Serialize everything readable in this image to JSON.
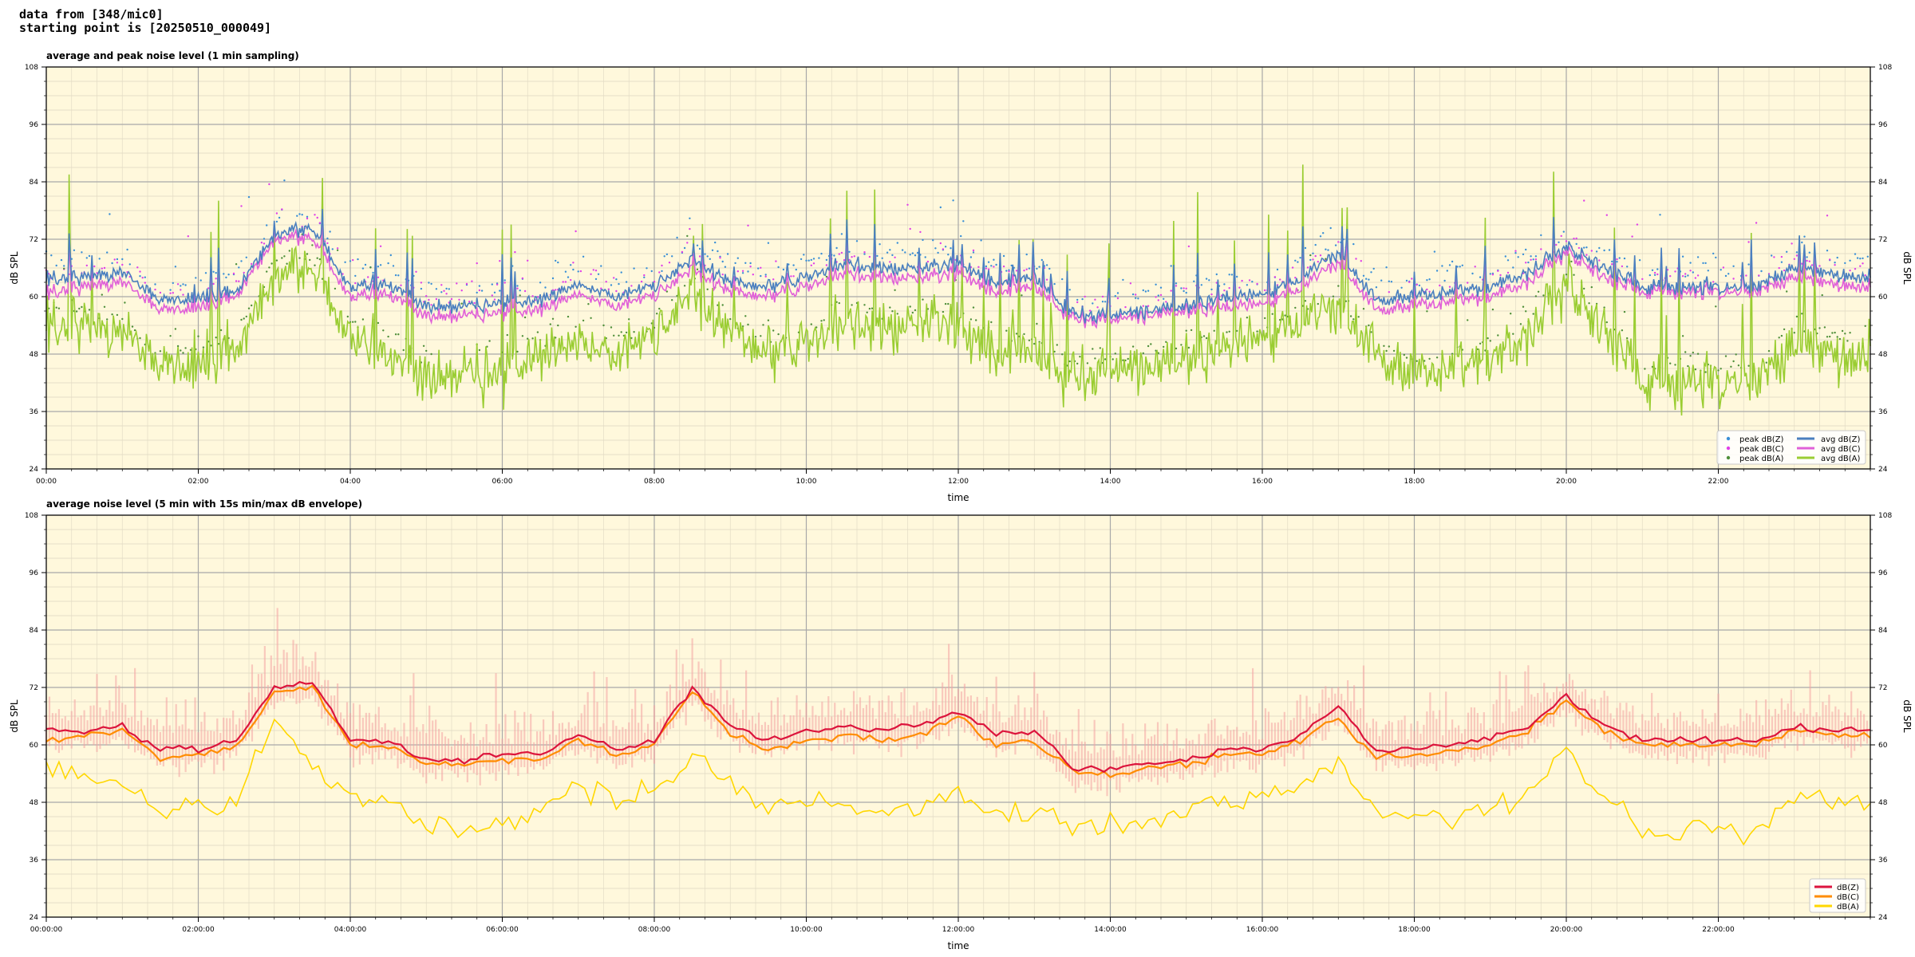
{
  "header": {
    "line1": "data from [348/mic0]",
    "line2": "starting point is [20250510_000049]"
  },
  "colors": {
    "plot_bg": "#fff8dc",
    "peak_z": "#3a8fd6",
    "peak_c": "#e040e8",
    "peak_a": "#4f8f3a",
    "avg_z": "#4a7fbf",
    "avg_c": "#e060d8",
    "avg_a": "#9acd32",
    "dbz_5min": "#dc143c",
    "dbc_5min": "#ff8c00",
    "dba_5min": "#ffd700",
    "envelope": "#f4a3a3"
  },
  "chart_data": [
    {
      "type": "scatter",
      "title": "average and peak noise level (1 min sampling)",
      "xlabel": "time",
      "ylabel": "dB SPL",
      "xlim": [
        0,
        24
      ],
      "ylim": [
        24,
        108
      ],
      "yticks": [
        24,
        36,
        48,
        60,
        72,
        84,
        96,
        108
      ],
      "xtick_labels": [
        "00:00",
        "02:00",
        "04:00",
        "06:00",
        "08:00",
        "10:00",
        "12:00",
        "14:00",
        "16:00",
        "18:00",
        "20:00",
        "22:00"
      ],
      "grid": true,
      "legend_placement": "lower-right",
      "legend": [
        "peak dB(Z)",
        "peak dB(C)",
        "peak dB(A)",
        "avg dB(Z)",
        "avg dB(C)",
        "avg dB(A)"
      ],
      "x_hours": [
        0,
        0.5,
        1,
        1.5,
        2,
        2.5,
        3,
        3.5,
        4,
        4.5,
        5,
        5.5,
        6,
        6.5,
        7,
        7.5,
        8,
        8.5,
        9,
        9.5,
        10,
        10.5,
        11,
        11.5,
        12,
        12.5,
        13,
        13.5,
        14,
        14.5,
        15,
        15.5,
        16,
        16.5,
        17,
        17.5,
        18,
        18.5,
        19,
        19.5,
        20,
        20.5,
        21,
        21.5,
        22,
        22.5,
        23,
        23.5,
        24
      ],
      "series": [
        {
          "name": "avg dB(Z)",
          "values": [
            64,
            64,
            65,
            59,
            60,
            61,
            73,
            74,
            62,
            63,
            58,
            58,
            59,
            59,
            63,
            60,
            62,
            68,
            63,
            62,
            64,
            67,
            66,
            66,
            67,
            63,
            64,
            56,
            56,
            57,
            58,
            60,
            60,
            64,
            69,
            59,
            60,
            61,
            62,
            65,
            70,
            66,
            62,
            62,
            62,
            62,
            66,
            65,
            64
          ]
        },
        {
          "name": "avg dB(C)",
          "values": [
            61,
            62,
            63,
            57,
            58,
            60,
            72,
            72,
            60,
            61,
            56,
            56,
            57,
            57,
            61,
            58,
            60,
            66,
            61,
            60,
            62,
            65,
            64,
            64,
            65,
            61,
            62,
            55,
            55,
            56,
            57,
            58,
            58,
            62,
            67,
            57,
            58,
            59,
            60,
            63,
            69,
            64,
            61,
            61,
            61,
            61,
            64,
            63,
            62
          ]
        },
        {
          "name": "avg dB(A)",
          "values": [
            55,
            54,
            52,
            45,
            47,
            49,
            64,
            65,
            52,
            49,
            43,
            44,
            45,
            47,
            52,
            48,
            51,
            62,
            52,
            48,
            50,
            55,
            53,
            55,
            54,
            49,
            48,
            42,
            44,
            45,
            47,
            50,
            50,
            55,
            57,
            47,
            44,
            45,
            47,
            52,
            62,
            53,
            42,
            42,
            42,
            42,
            50,
            49,
            48
          ]
        }
      ]
    },
    {
      "type": "line",
      "title": "average noise level (5 min with 15s min/max dB envelope)",
      "xlabel": "time",
      "ylabel": "dB SPL",
      "xlim": [
        0,
        24
      ],
      "ylim": [
        24,
        108
      ],
      "yticks": [
        24,
        36,
        48,
        60,
        72,
        84,
        96,
        108
      ],
      "xtick_labels": [
        "00:00:00",
        "02:00:00",
        "04:00:00",
        "06:00:00",
        "08:00:00",
        "10:00:00",
        "12:00:00",
        "14:00:00",
        "16:00:00",
        "18:00:00",
        "20:00:00",
        "22:00:00"
      ],
      "grid": true,
      "legend_placement": "lower-right",
      "legend": [
        "dB(Z)",
        "dB(C)",
        "dB(A)"
      ],
      "x_hours": [
        0,
        0.5,
        1,
        1.5,
        2,
        2.5,
        3,
        3.5,
        4,
        4.5,
        5,
        5.5,
        6,
        6.5,
        7,
        7.5,
        8,
        8.5,
        9,
        9.5,
        10,
        10.5,
        11,
        11.5,
        12,
        12.5,
        13,
        13.5,
        14,
        14.5,
        15,
        15.5,
        16,
        16.5,
        17,
        17.5,
        18,
        18.5,
        19,
        19.5,
        20,
        20.5,
        21,
        21.5,
        22,
        22.5,
        23,
        23.5,
        24
      ],
      "series": [
        {
          "name": "dB(Z)",
          "values": [
            63,
            63,
            64,
            59,
            59,
            61,
            72,
            73,
            61,
            61,
            57,
            57,
            58,
            58,
            62,
            59,
            61,
            72,
            64,
            61,
            63,
            64,
            63,
            64,
            67,
            62,
            63,
            55,
            55,
            56,
            57,
            59,
            59,
            62,
            68,
            59,
            59,
            60,
            61,
            64,
            70,
            64,
            61,
            61,
            61,
            61,
            64,
            63,
            63
          ]
        },
        {
          "name": "dB(C)",
          "values": [
            61,
            62,
            63,
            57,
            58,
            60,
            71,
            72,
            60,
            60,
            56,
            56,
            57,
            57,
            61,
            58,
            60,
            71,
            62,
            59,
            61,
            62,
            61,
            62,
            66,
            60,
            61,
            54,
            54,
            55,
            56,
            58,
            58,
            61,
            66,
            57,
            58,
            59,
            60,
            63,
            69,
            63,
            60,
            60,
            60,
            60,
            63,
            62,
            62
          ]
        },
        {
          "name": "dB(A)",
          "values": [
            55,
            53,
            52,
            46,
            47,
            48,
            66,
            55,
            49,
            48,
            42,
            42,
            44,
            46,
            52,
            48,
            50,
            58,
            51,
            47,
            49,
            47,
            46,
            48,
            50,
            46,
            47,
            42,
            43,
            44,
            46,
            48,
            48,
            52,
            56,
            46,
            45,
            45,
            47,
            50,
            58,
            49,
            42,
            42,
            42,
            42,
            48,
            49,
            48
          ]
        }
      ]
    }
  ]
}
